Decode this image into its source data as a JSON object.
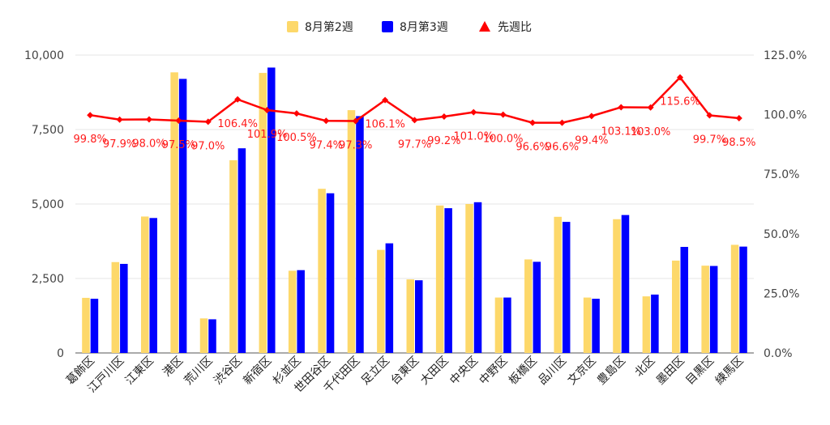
{
  "legend": {
    "week2_label": "8月第2週",
    "week3_label": "8月第3週",
    "ratio_label": "先週比"
  },
  "colors": {
    "week2": "#fdd86a",
    "week3": "#0000ff",
    "ratio": "#ff0000",
    "grid": "#e6e6e6",
    "axis": "#555555",
    "label": "#ff1a1a"
  },
  "chart_data": {
    "type": "bar",
    "combo": "bar + line (secondary axis)",
    "categories": [
      "葛飾区",
      "江戸川区",
      "江東区",
      "港区",
      "荒川区",
      "渋谷区",
      "新宿区",
      "杉並区",
      "世田谷区",
      "千代田区",
      "足立区",
      "台東区",
      "大田区",
      "中央区",
      "中野区",
      "板橋区",
      "品川区",
      "文京区",
      "豊島区",
      "北区",
      "墨田区",
      "目黒区",
      "練馬区"
    ],
    "series": [
      {
        "name": "8月第2週",
        "axis": "left",
        "kind": "bar",
        "values": [
          1850,
          3050,
          4580,
          9420,
          1160,
          6470,
          9400,
          2760,
          5510,
          8150,
          3460,
          2470,
          4950,
          5000,
          1860,
          3140,
          4570,
          1860,
          4490,
          1900,
          3100,
          2930,
          3630
        ]
      },
      {
        "name": "8月第3週",
        "axis": "right-less",
        "kind": "bar",
        "values": [
          1820,
          2990,
          4530,
          9200,
          1130,
          6870,
          9580,
          2780,
          5360,
          7950,
          3680,
          2440,
          4860,
          5060,
          1860,
          3060,
          4400,
          1820,
          4630,
          1960,
          3560,
          2920,
          3570
        ]
      },
      {
        "name": "先週比",
        "axis": "right",
        "kind": "line",
        "values": [
          99.8,
          97.9,
          98.0,
          97.5,
          97.0,
          106.4,
          101.9,
          100.5,
          97.4,
          97.3,
          106.1,
          97.7,
          99.2,
          101.0,
          100.0,
          96.6,
          96.6,
          99.4,
          103.1,
          103.0,
          115.6,
          99.7,
          98.5
        ],
        "labels": [
          "99.8%",
          "97.9%",
          "98.0%",
          "97.5%",
          "97.0%",
          "106.4%",
          "101.9%",
          "100.5%",
          "97.4%",
          "97.3%",
          "106.1%",
          "97.7%",
          "99.2%",
          "101.0%",
          "100.0%",
          "96.6%",
          "96.6%",
          "99.4%",
          "103.1%",
          "103.0%",
          "115.6%",
          "99.7%",
          "98.5%"
        ]
      }
    ],
    "y_left": {
      "min": 0,
      "max": 10000,
      "ticks": [
        0,
        2500,
        5000,
        7500,
        10000
      ],
      "tick_labels": [
        "0",
        "2,500",
        "5,000",
        "7,500",
        "10,000"
      ]
    },
    "y_right": {
      "min": 0,
      "max": 125,
      "ticks": [
        0,
        25,
        50,
        75,
        100,
        125
      ],
      "tick_labels": [
        "0.0%",
        "25.0%",
        "50.0%",
        "75.0%",
        "100.0%",
        "125.0%"
      ]
    },
    "grid": true,
    "legend_position": "top"
  }
}
